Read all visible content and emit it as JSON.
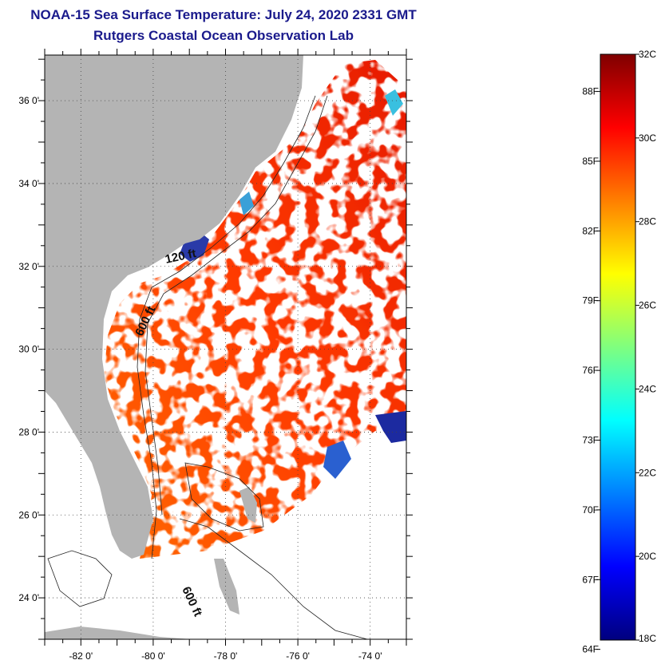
{
  "header": {
    "title": "NOAA-15 Sea Surface Temperature:  July 24, 2020 2331 GMT",
    "subtitle": "Rutgers Coastal Ocean Observation Lab"
  },
  "map": {
    "lat_ticks": [
      {
        "value": 36,
        "label": "36 0'"
      },
      {
        "value": 34,
        "label": "34 0'"
      },
      {
        "value": 32,
        "label": "32 0'"
      },
      {
        "value": 30,
        "label": "30 0'"
      },
      {
        "value": 28,
        "label": "28 0'"
      },
      {
        "value": 26,
        "label": "26 0'"
      },
      {
        "value": 24,
        "label": "24 0'"
      }
    ],
    "lon_ticks": [
      {
        "value": -82,
        "label": "-82 0'"
      },
      {
        "value": -80,
        "label": "-80 0'"
      },
      {
        "value": -78,
        "label": "-78 0'"
      },
      {
        "value": -76,
        "label": "-76 0'"
      },
      {
        "value": -74,
        "label": "-74 0'"
      }
    ],
    "lat_range": [
      23,
      37.1
    ],
    "lon_range": [
      -83,
      -73
    ],
    "isobath_labels": [
      "120 ft",
      "600 ft",
      "600 ft"
    ],
    "land_color": "#b4b4b4",
    "grid": "dotted"
  },
  "colorbar": {
    "celsius": [
      {
        "value": 32,
        "label": "32C"
      },
      {
        "value": 30,
        "label": "30C"
      },
      {
        "value": 28,
        "label": "28C"
      },
      {
        "value": 26,
        "label": "26C"
      },
      {
        "value": 24,
        "label": "24C"
      },
      {
        "value": 22,
        "label": "22C"
      },
      {
        "value": 20,
        "label": "20C"
      },
      {
        "value": 18,
        "label": "18C"
      }
    ],
    "fahrenheit": [
      {
        "value": 88,
        "label": "88F"
      },
      {
        "value": 85,
        "label": "85F"
      },
      {
        "value": 82,
        "label": "82F"
      },
      {
        "value": 79,
        "label": "79F"
      },
      {
        "value": 76,
        "label": "76F"
      },
      {
        "value": 73,
        "label": "73F"
      },
      {
        "value": 70,
        "label": "70F"
      },
      {
        "value": 67,
        "label": "67F"
      },
      {
        "value": 64,
        "label": "64F"
      }
    ],
    "range_c": [
      18,
      32
    ],
    "colors": [
      "#00007f",
      "#0000ff",
      "#007fff",
      "#00ffff",
      "#7fff7f",
      "#ffff00",
      "#ff7f00",
      "#ff0000",
      "#7f0000"
    ]
  }
}
